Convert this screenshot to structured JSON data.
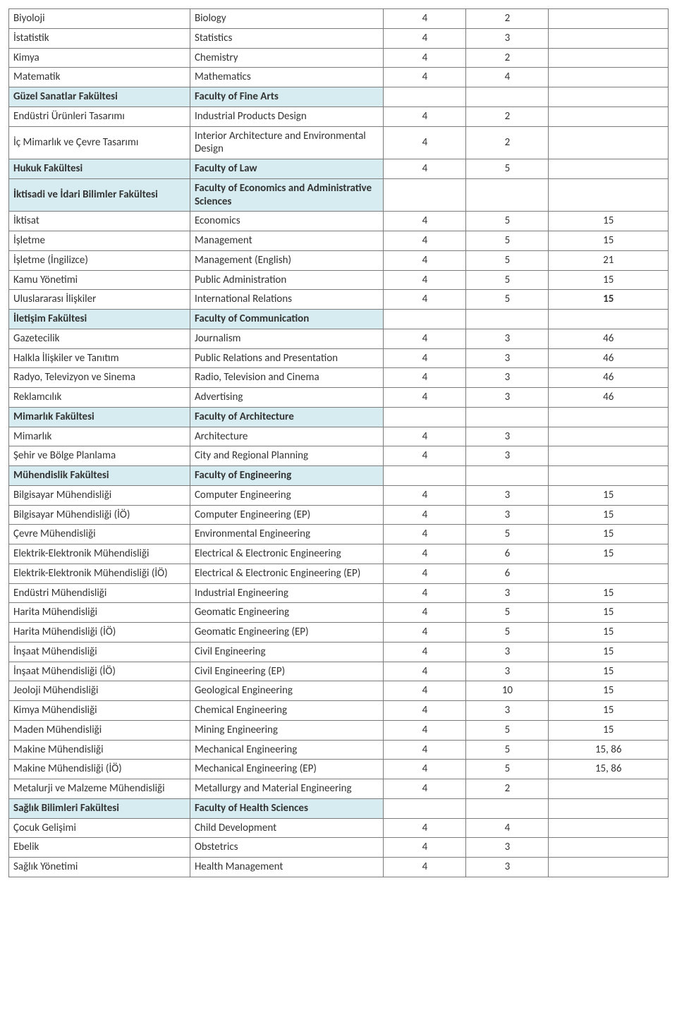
{
  "colors": {
    "header_bg": "#d6ecf0",
    "border": "#7b7b7b",
    "text": "#333333"
  },
  "columns": [
    "turkish",
    "english",
    "n1",
    "n2",
    "n3"
  ],
  "column_widths_pct": [
    28,
    30,
    12,
    12,
    18
  ],
  "rows": [
    {
      "type": "data",
      "turkish": "Biyoloji",
      "english": "Biology",
      "n1": "4",
      "n2": "2",
      "n3": ""
    },
    {
      "type": "data",
      "turkish": "İstatistik",
      "english": "Statistics",
      "n1": "4",
      "n2": "3",
      "n3": ""
    },
    {
      "type": "data",
      "turkish": "Kimya",
      "english": "Chemistry",
      "n1": "4",
      "n2": "2",
      "n3": ""
    },
    {
      "type": "data",
      "turkish": "Matematik",
      "english": "Mathematics",
      "n1": "4",
      "n2": "4",
      "n3": ""
    },
    {
      "type": "header",
      "turkish": "Güzel Sanatlar Fakültesi",
      "english": "Faculty of Fine Arts",
      "n1": "",
      "n2": "",
      "n3": ""
    },
    {
      "type": "data",
      "turkish": "Endüstri Ürünleri Tasarımı",
      "english": "Industrial Products Design",
      "n1": "4",
      "n2": "2",
      "n3": ""
    },
    {
      "type": "data",
      "turkish": "İç Mimarlık ve Çevre Tasarımı",
      "english": "Interior Architecture and Environmental Design",
      "n1": "4",
      "n2": "2",
      "n3": ""
    },
    {
      "type": "header",
      "turkish": "Hukuk Fakültesi",
      "english": "Faculty of Law",
      "n1": "4",
      "n2": "5",
      "n3": ""
    },
    {
      "type": "header",
      "turkish": "İktisadi ve İdari Bilimler Fakültesi",
      "english": "Faculty of Economics and Administrative Sciences",
      "n1": "",
      "n2": "",
      "n3": ""
    },
    {
      "type": "data",
      "turkish": "İktisat",
      "english": "Economics",
      "n1": "4",
      "n2": "5",
      "n3": "15"
    },
    {
      "type": "data",
      "turkish": "İşletme",
      "english": "Management",
      "n1": "4",
      "n2": "5",
      "n3": "15"
    },
    {
      "type": "data",
      "turkish": "İşletme (İngilizce)",
      "english": "Management (English)",
      "n1": "4",
      "n2": "5",
      "n3": "21"
    },
    {
      "type": "data",
      "turkish": "Kamu Yönetimi",
      "english": "Public Administration",
      "n1": "4",
      "n2": "5",
      "n3": "15"
    },
    {
      "type": "data",
      "turkish": "Uluslararası İlişkiler",
      "english": "International Relations",
      "n1": "4",
      "n2": "5",
      "n3": "15",
      "n3_bold": true
    },
    {
      "type": "header",
      "turkish": "İletişim Fakültesi",
      "english": "Faculty of Communication",
      "n1": "",
      "n2": "",
      "n3": ""
    },
    {
      "type": "data",
      "turkish": "Gazetecilik",
      "english": "Journalism",
      "n1": "4",
      "n2": "3",
      "n3": "46"
    },
    {
      "type": "data",
      "turkish": "Halkla İlişkiler ve Tanıtım",
      "english": "Public Relations and Presentation",
      "n1": "4",
      "n2": "3",
      "n3": "46"
    },
    {
      "type": "data",
      "turkish": "Radyo, Televizyon ve Sinema",
      "english": "Radio, Television and Cinema",
      "n1": "4",
      "n2": "3",
      "n3": "46"
    },
    {
      "type": "data",
      "turkish": "Reklamcılık",
      "english": "Advertising",
      "n1": "4",
      "n2": "3",
      "n3": "46"
    },
    {
      "type": "header",
      "turkish": "Mimarlık Fakültesi",
      "english": "Faculty of Architecture",
      "n1": "",
      "n2": "",
      "n3": ""
    },
    {
      "type": "data",
      "turkish": "Mimarlık",
      "english": "Architecture",
      "n1": "4",
      "n2": "3",
      "n3": ""
    },
    {
      "type": "data",
      "turkish": "Şehir ve Bölge Planlama",
      "english": "City and Regional Planning",
      "n1": "4",
      "n2": "3",
      "n3": ""
    },
    {
      "type": "header",
      "turkish": "Mühendislik Fakültesi",
      "english": "Faculty of Engineering",
      "n1": "",
      "n2": "",
      "n3": ""
    },
    {
      "type": "data",
      "turkish": "Bilgisayar Mühendisliği",
      "english": "Computer Engineering",
      "n1": "4",
      "n2": "3",
      "n3": "15"
    },
    {
      "type": "data",
      "turkish": "Bilgisayar Mühendisliği (İÖ)",
      "english": "Computer Engineering (EP)",
      "n1": "4",
      "n2": "3",
      "n3": "15"
    },
    {
      "type": "data",
      "turkish": "Çevre Mühendisliği",
      "english": "Environmental Engineering",
      "n1": "4",
      "n2": "5",
      "n3": "15"
    },
    {
      "type": "data",
      "turkish": "Elektrik-Elektronik Mühendisliği",
      "english": "Electrical & Electronic Engineering",
      "n1": "4",
      "n2": "6",
      "n3": "15"
    },
    {
      "type": "data",
      "turkish": "Elektrik-Elektronik Mühendisliği (İÖ)",
      "english": "Electrical & Electronic Engineering (EP)",
      "n1": "4",
      "n2": "6",
      "n3": ""
    },
    {
      "type": "data",
      "turkish": "Endüstri Mühendisliği",
      "english": "Industrial Engineering",
      "n1": "4",
      "n2": "3",
      "n3": "15"
    },
    {
      "type": "data",
      "turkish": "Harita Mühendisliği",
      "english": "Geomatic Engineering",
      "n1": "4",
      "n2": "5",
      "n3": "15"
    },
    {
      "type": "data",
      "turkish": "Harita Mühendisliği (İÖ)",
      "english": "Geomatic Engineering (EP)",
      "n1": "4",
      "n2": "5",
      "n3": "15"
    },
    {
      "type": "data",
      "turkish": "İnşaat Mühendisliği",
      "english": "Civil Engineering",
      "n1": "4",
      "n2": "3",
      "n3": "15"
    },
    {
      "type": "data",
      "turkish": "İnşaat Mühendisliği (İÖ)",
      "english": "Civil Engineering (EP)",
      "n1": "4",
      "n2": "3",
      "n3": "15"
    },
    {
      "type": "data",
      "turkish": "Jeoloji Mühendisliği",
      "english": "Geological Engineering",
      "n1": "4",
      "n2": "10",
      "n3": "15"
    },
    {
      "type": "data",
      "turkish": "Kimya Mühendisliği",
      "english": "Chemical Engineering",
      "n1": "4",
      "n2": "3",
      "n3": "15"
    },
    {
      "type": "data",
      "turkish": "Maden Mühendisliği",
      "english": "Mining Engineering",
      "n1": "4",
      "n2": "5",
      "n3": "15"
    },
    {
      "type": "data",
      "turkish": "Makine Mühendisliği",
      "english": "Mechanical Engineering",
      "n1": "4",
      "n2": "5",
      "n3": "15, 86"
    },
    {
      "type": "data",
      "turkish": "Makine Mühendisliği (İÖ)",
      "english": "Mechanical Engineering (EP)",
      "n1": "4",
      "n2": "5",
      "n3": "15, 86"
    },
    {
      "type": "data",
      "turkish": "Metalurji ve Malzeme Mühendisliği",
      "english": "Metallurgy and Material Engineering",
      "n1": "4",
      "n2": "2",
      "n3": ""
    },
    {
      "type": "header",
      "turkish": "Sağlık Bilimleri Fakültesi",
      "english": "Faculty of Health Sciences",
      "n1": "",
      "n2": "",
      "n3": ""
    },
    {
      "type": "data",
      "turkish": "Çocuk Gelişimi",
      "english": "Child Development",
      "n1": "4",
      "n2": "4",
      "n3": ""
    },
    {
      "type": "data",
      "turkish": "Ebelik",
      "english": "Obstetrics",
      "n1": "4",
      "n2": "3",
      "n3": ""
    },
    {
      "type": "data",
      "turkish": "Sağlık Yönetimi",
      "english": "Health Management",
      "n1": "4",
      "n2": "3",
      "n3": ""
    }
  ]
}
